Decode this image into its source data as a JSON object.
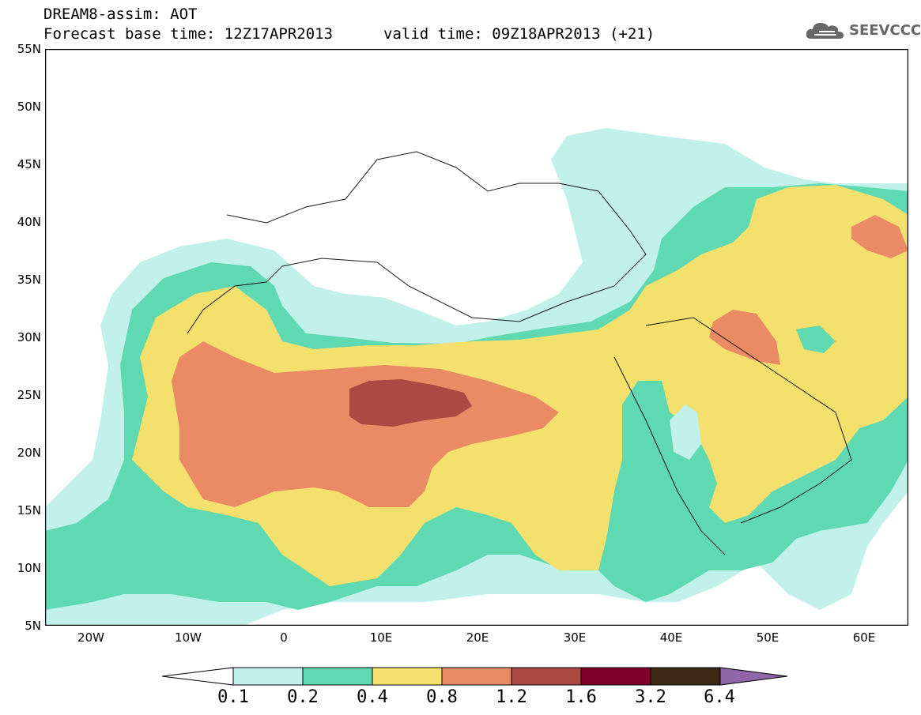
{
  "header": {
    "line1": "DREAM8-assim: AOT",
    "line2_base": "Forecast base time: 12Z17APR2013",
    "line2_valid": "valid time: 09Z18APR2013 (+21)"
  },
  "logo": {
    "icon": "cloud-icon",
    "text": "SEEVCCC"
  },
  "axes": {
    "y_ticks": [
      "55N",
      "50N",
      "45N",
      "40N",
      "35N",
      "30N",
      "25N",
      "20N",
      "15N",
      "10N",
      "5N"
    ],
    "x_ticks": [
      "20W",
      "10W",
      "0",
      "10E",
      "20E",
      "30E",
      "40E",
      "50E",
      "60E"
    ]
  },
  "colorbar": {
    "labels": [
      "0.1",
      "0.2",
      "0.4",
      "0.8",
      "1.2",
      "1.6",
      "3.2",
      "6.4"
    ],
    "colors": [
      "#ffffff",
      "#c2f0ea",
      "#5ed9b2",
      "#f4e06d",
      "#ea8b66",
      "#ab4a42",
      "#7c0029",
      "#3d2916",
      "#8f67a8"
    ]
  }
}
